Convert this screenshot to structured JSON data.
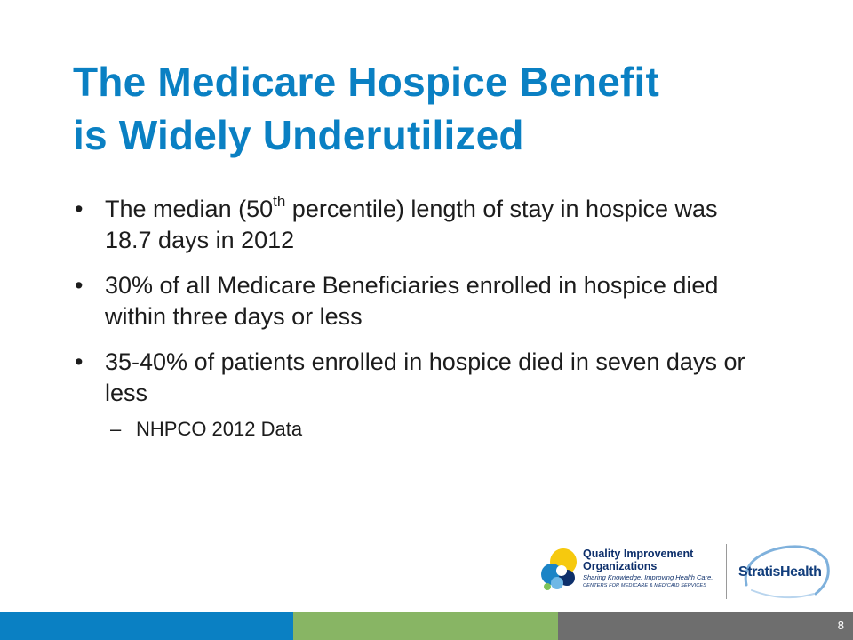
{
  "slide": {
    "title_line1": "The Medicare Hospice Benefit",
    "title_line2": "is Widely Underutilized",
    "bullet_char": "•",
    "bullets": [
      {
        "text_before": "The median (50",
        "superscript": "th",
        "text_after": " percentile) length of stay in hospice was 18.7 days in 2012"
      },
      {
        "text": "30% of all Medicare Beneficiaries enrolled in hospice died within three days or less"
      },
      {
        "text": "35-40% of patients enrolled in hospice died in seven days or less"
      }
    ],
    "sub_bullet_char": "–",
    "sub_bullet": "NHPCO 2012 Data"
  },
  "logos": {
    "qio_line1": "Quality Improvement",
    "qio_line2": "Organizations",
    "qio_tagline": "Sharing Knowledge. Improving Health Care.",
    "qio_subtag": "CENTERS FOR MEDICARE & MEDICAID SERVICES",
    "stratis_part1": "Stratis",
    "stratis_part2": "Health"
  },
  "footer": {
    "page_number": "8"
  },
  "colors": {
    "title": "#0a80c3",
    "footer_blue": "#0a80c3",
    "footer_green": "#88b564",
    "footer_gray": "#6e6e6e"
  }
}
